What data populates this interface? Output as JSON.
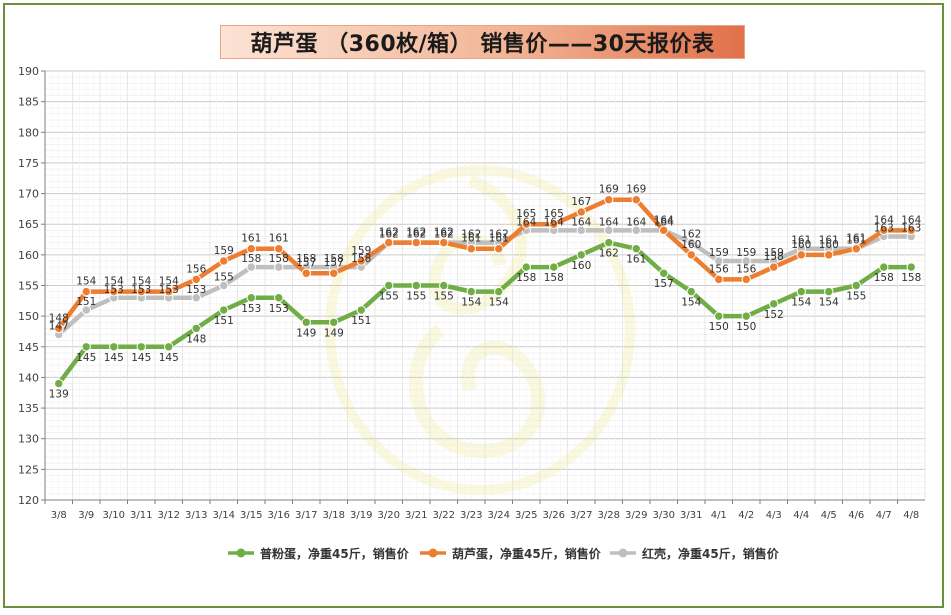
{
  "chart_data": {
    "type": "line",
    "title": "葫芦蛋 （360枚/箱） 销售价——30天报价表",
    "categories": [
      "3/8",
      "3/9",
      "3/10",
      "3/11",
      "3/12",
      "3/13",
      "3/14",
      "3/15",
      "3/16",
      "3/17",
      "3/18",
      "3/19",
      "3/20",
      "3/21",
      "3/22",
      "3/23",
      "3/24",
      "3/25",
      "3/26",
      "3/27",
      "3/28",
      "3/29",
      "3/30",
      "3/31",
      "4/1",
      "4/2",
      "4/3",
      "4/4",
      "4/5",
      "4/6",
      "4/7",
      "4/8"
    ],
    "ylim": [
      120,
      190
    ],
    "yticks": [
      120,
      125,
      130,
      135,
      140,
      145,
      150,
      155,
      160,
      165,
      170,
      175,
      180,
      185,
      190
    ],
    "grid": true,
    "legend_position": "bottom",
    "series": [
      {
        "name": "普粉蛋，净重45斤，销售价",
        "color": "#70ad47",
        "values": [
          139,
          145,
          145,
          145,
          145,
          148,
          151,
          153,
          153,
          149,
          149,
          151,
          155,
          155,
          155,
          154,
          154,
          158,
          158,
          160,
          162,
          161,
          157,
          154,
          150,
          150,
          152,
          154,
          154,
          155,
          158,
          158
        ]
      },
      {
        "name": "葫芦蛋，净重45斤，销售价",
        "color": "#ed7d31",
        "values": [
          148,
          154,
          154,
          154,
          154,
          156,
          159,
          161,
          161,
          157,
          157,
          159,
          162,
          162,
          162,
          161,
          161,
          165,
          165,
          167,
          169,
          169,
          164,
          160,
          156,
          156,
          158,
          160,
          160,
          161,
          164,
          164
        ]
      },
      {
        "name": "红壳，净重45斤，销售价",
        "color": "#bfbfbf",
        "values": [
          147,
          151,
          153,
          153,
          153,
          153,
          155,
          158,
          158,
          158,
          158,
          158,
          162,
          162,
          162,
          162,
          162,
          164,
          164,
          164,
          164,
          164,
          164,
          162,
          159,
          159,
          159,
          161,
          161,
          161,
          163,
          163
        ]
      }
    ]
  }
}
